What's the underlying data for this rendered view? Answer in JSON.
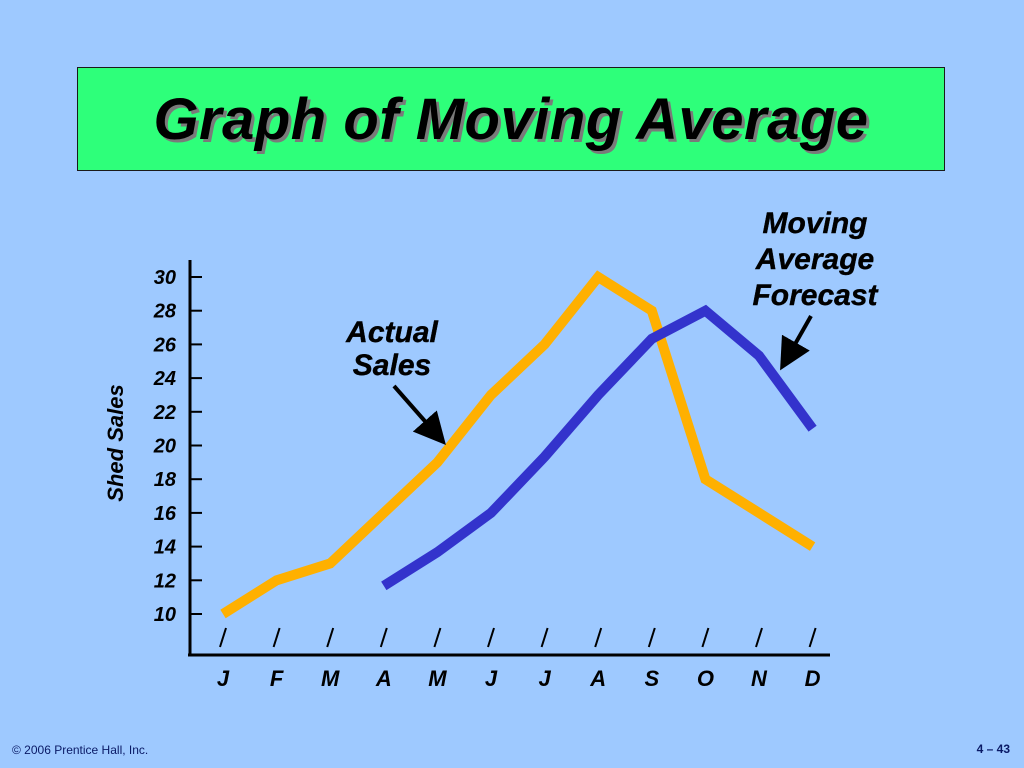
{
  "slide": {
    "title": "Graph of Moving Average",
    "footer_left": "© 2006 Prentice Hall, Inc.",
    "footer_right": "4 – 43"
  },
  "chart_data": {
    "type": "line",
    "title": "",
    "ylabel": "Shed Sales",
    "xlabel": "",
    "categories": [
      "J",
      "F",
      "M",
      "A",
      "M",
      "J",
      "J",
      "A",
      "S",
      "O",
      "N",
      "D"
    ],
    "yticks": [
      10,
      12,
      14,
      16,
      18,
      20,
      22,
      24,
      26,
      28,
      30
    ],
    "ylim": [
      10,
      30
    ],
    "grid": false,
    "series": [
      {
        "name": "Actual Sales",
        "color": "#ffb000",
        "values": [
          10,
          12,
          13,
          16,
          19,
          23,
          26,
          30,
          28,
          18,
          16,
          14
        ]
      },
      {
        "name": "Moving Average Forecast",
        "color": "#3333cc",
        "values": [
          null,
          null,
          null,
          11.67,
          13.67,
          16,
          19.33,
          23,
          26.33,
          28,
          25.33,
          21
        ]
      }
    ],
    "annotations": [
      {
        "series": 0,
        "lines": [
          "Actual",
          "Sales"
        ]
      },
      {
        "series": 1,
        "lines": [
          "Moving",
          "Average",
          "Forecast"
        ]
      }
    ]
  }
}
